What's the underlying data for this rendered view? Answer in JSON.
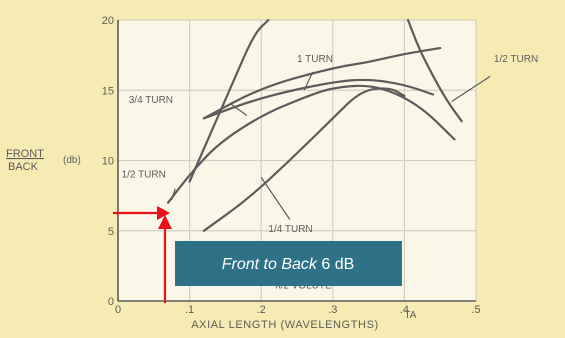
{
  "chart_data": {
    "type": "line",
    "title": "",
    "xlabel": "AXIAL LENGTH (WAVELENGTHS)",
    "ylabel": "FRONT / BACK",
    "ylabel_top": "FRONT",
    "ylabel_bottom": "BACK",
    "yunit": "(db)",
    "xlim": [
      0,
      0.5
    ],
    "ylim": [
      0,
      20
    ],
    "grid": true,
    "x_ticks": [
      {
        "value": 0,
        "label": "0"
      },
      {
        "value": 0.1,
        "label": ".1"
      },
      {
        "value": 0.2,
        "label": ".2"
      },
      {
        "value": 0.3,
        "label": ".3"
      },
      {
        "value": 0.4,
        "label": ".4"
      },
      {
        "value": 0.5,
        "label": ".5"
      }
    ],
    "y_ticks": [
      {
        "value": 0,
        "label": "0"
      },
      {
        "value": 5,
        "label": "5"
      },
      {
        "value": 10,
        "label": "10"
      },
      {
        "value": 15,
        "label": "15"
      },
      {
        "value": 20,
        "label": "20"
      }
    ],
    "series": [
      {
        "name": "3/4 TURN",
        "x": [
          0.12,
          0.2,
          0.3,
          0.35,
          0.4,
          0.44
        ],
        "y": [
          13.0,
          14.5,
          15.6,
          15.8,
          15.4,
          14.7
        ]
      },
      {
        "name": "1 TURN",
        "x": [
          0.12,
          0.2,
          0.3,
          0.35,
          0.4,
          0.45
        ],
        "y": [
          13.0,
          15.2,
          16.6,
          17.0,
          17.6,
          18.0
        ]
      },
      {
        "name": "1/2 TURN",
        "x": [
          0.07,
          0.1,
          0.14,
          0.2,
          0.26,
          0.3,
          0.36,
          0.42,
          0.47
        ],
        "y": [
          7.0,
          9.0,
          11.2,
          13.2,
          14.5,
          15.2,
          15.4,
          14.0,
          11.5
        ]
      },
      {
        "name": "1/4 TURN",
        "x": [
          0.12,
          0.18,
          0.24,
          0.3,
          0.34,
          0.38,
          0.4
        ],
        "y": [
          5.0,
          7.2,
          10.0,
          13.0,
          15.0,
          15.2,
          14.6
        ]
      },
      {
        "name": "",
        "x": [
          0.1,
          0.13,
          0.16,
          0.19,
          0.21
        ],
        "y": [
          8.5,
          12.0,
          15.5,
          19.0,
          20.0
        ]
      },
      {
        "name": "",
        "x": [
          0.405,
          0.42,
          0.44,
          0.46,
          0.48
        ],
        "y": [
          20.0,
          18.0,
          16.0,
          14.2,
          12.8
        ]
      }
    ],
    "annotations": [
      {
        "text": "1 TURN",
        "x": 0.25,
        "y": 17.0
      },
      {
        "text": "3/4 TURN",
        "x": 0.015,
        "y": 14.1
      },
      {
        "text": "1/2 TURN",
        "x": 0.005,
        "y": 8.8
      },
      {
        "text": "1/4 TURN",
        "x": 0.21,
        "y": 4.9
      },
      {
        "text": "1/2 TURN",
        "x": 0.525,
        "y": 17.0
      },
      {
        "text": "λ/2 VOLUTE",
        "x": 0.22,
        "y": 0.9
      },
      {
        "text": "TA",
        "x": 0.4,
        "y": -1.2
      }
    ]
  },
  "callout": {
    "text_italic": "Front to Back",
    "text_value": "6 dB",
    "bg_color": "#2f7288"
  },
  "colors": {
    "paper": "#f7ebb4",
    "plot_bg": "#fbf7e8",
    "ink": "#5c5c5a",
    "arrow": "#e8101a"
  }
}
